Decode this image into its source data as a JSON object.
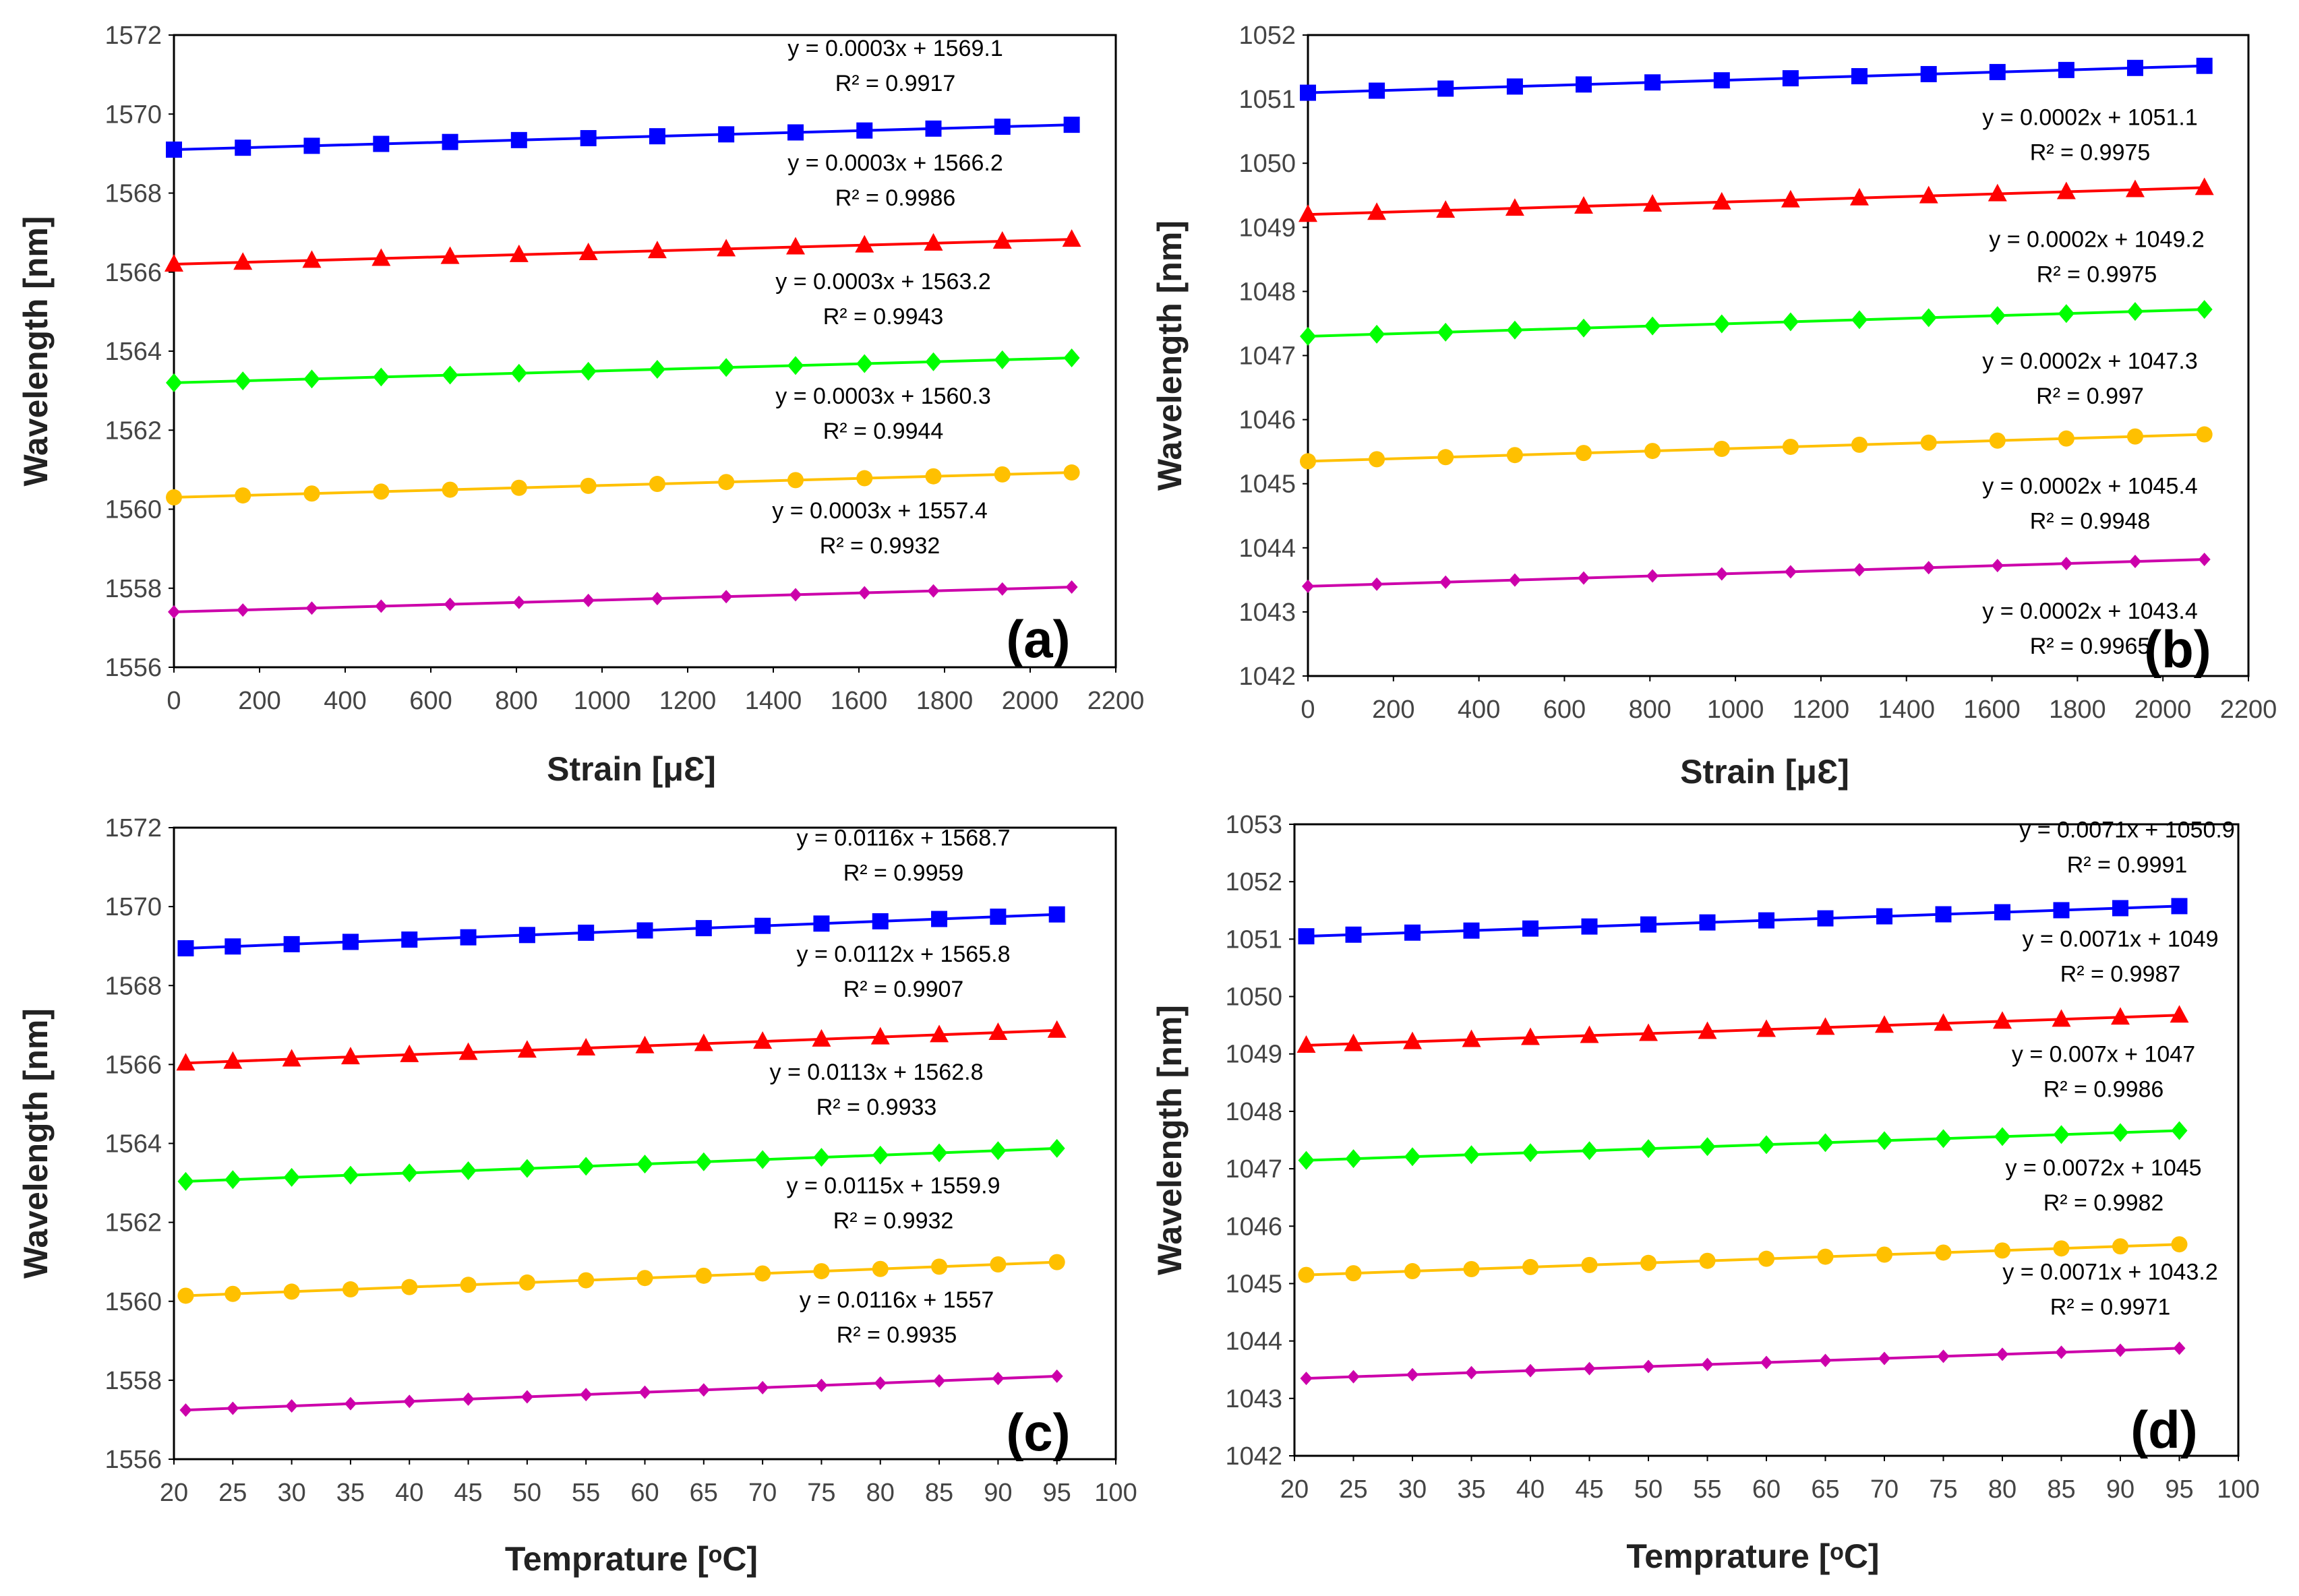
{
  "chart_data": [
    {
      "id": "a",
      "type": "line",
      "panel_label": "(a)",
      "xlabel": "Strain [μƐ]",
      "ylabel": "Wavelength [nm]",
      "xlim": [
        0,
        2200
      ],
      "ylim": [
        1556,
        1572
      ],
      "xticks": [
        "0",
        "200",
        "400",
        "600",
        "800",
        "1000",
        "1200",
        "1400",
        "1600",
        "1800",
        "2000",
        "2200"
      ],
      "yticks": [
        "1556",
        "1558",
        "1560",
        "1562",
        "1564",
        "1566",
        "1568",
        "1570",
        "1572"
      ],
      "x": [
        0,
        161,
        322,
        484,
        645,
        806,
        968,
        1129,
        1290,
        1452,
        1613,
        1774,
        1935,
        2097
      ],
      "series": [
        {
          "name": "Blue",
          "color": "#0000FF",
          "marker": "square",
          "slope": 0.0003,
          "intercept": 1569.1,
          "equation": "y = 0.0003x + 1569.1",
          "r2": "R² = 0.9917"
        },
        {
          "name": "Red",
          "color": "#FF0000",
          "marker": "triangle",
          "slope": 0.0003,
          "intercept": 1566.2,
          "equation": "y = 0.0003x + 1566.2",
          "r2": "R² = 0.9986"
        },
        {
          "name": "Green",
          "color": "#00FF00",
          "marker": "diamond",
          "slope": 0.0003,
          "intercept": 1563.2,
          "equation": "y = 0.0003x + 1563.2",
          "r2": "R² = 0.9943"
        },
        {
          "name": "Orange",
          "color": "#FFC000",
          "marker": "circle",
          "slope": 0.0003,
          "intercept": 1560.3,
          "equation": "y = 0.0003x + 1560.3",
          "r2": "R² = 0.9944"
        },
        {
          "name": "Magenta",
          "color": "#CC00AA",
          "marker": "smalldiamond",
          "slope": 0.0003,
          "intercept": 1557.4,
          "equation": "y = 0.0003x + 1557.4",
          "r2": "R² = 0.9932"
        }
      ]
    },
    {
      "id": "b",
      "type": "line",
      "panel_label": "(b)",
      "xlabel": "Strain [μƐ]",
      "ylabel": "Wavelength [nm]",
      "xlim": [
        0,
        2200
      ],
      "ylim": [
        1042,
        1052
      ],
      "xticks": [
        "0",
        "200",
        "400",
        "600",
        "800",
        "1000",
        "1200",
        "1400",
        "1600",
        "1800",
        "2000",
        "2200"
      ],
      "yticks": [
        "1042",
        "1043",
        "1044",
        "1045",
        "1046",
        "1047",
        "1048",
        "1049",
        "1050",
        "1051",
        "1052"
      ],
      "x": [
        0,
        161,
        322,
        484,
        645,
        806,
        968,
        1129,
        1290,
        1452,
        1613,
        1774,
        1935,
        2097
      ],
      "series": [
        {
          "name": "Blue",
          "color": "#0000FF",
          "marker": "square",
          "slope": 0.0002,
          "intercept": 1051.1,
          "equation": "y = 0.0002x + 1051.1",
          "r2": "R² = 0.9975"
        },
        {
          "name": "Red",
          "color": "#FF0000",
          "marker": "triangle",
          "slope": 0.0002,
          "intercept": 1049.2,
          "equation": "y = 0.0002x + 1049.2",
          "r2": "R² = 0.9975"
        },
        {
          "name": "Green",
          "color": "#00FF00",
          "marker": "diamond",
          "slope": 0.0002,
          "intercept": 1047.3,
          "equation": "y = 0.0002x + 1047.3",
          "r2": "R² = 0.997"
        },
        {
          "name": "Orange",
          "color": "#FFC000",
          "marker": "circle",
          "slope": 0.0002,
          "intercept": 1045.35,
          "equation": "y = 0.0002x + 1045.4",
          "r2": "R² = 0.9948"
        },
        {
          "name": "Magenta",
          "color": "#CC00AA",
          "marker": "smalldiamond",
          "slope": 0.0002,
          "intercept": 1043.4,
          "equation": "y = 0.0002x + 1043.4",
          "r2": "R² = 0.9965"
        }
      ]
    },
    {
      "id": "c",
      "type": "line",
      "panel_label": "(c)",
      "xlabel": "Temprature [ᵒC]",
      "ylabel": "Wavelength [nm]",
      "xlim": [
        20,
        100
      ],
      "ylim": [
        1556,
        1572
      ],
      "xticks": [
        "20",
        "25",
        "30",
        "35",
        "40",
        "45",
        "50",
        "55",
        "60",
        "65",
        "70",
        "75",
        "80",
        "85",
        "90",
        "95",
        "100"
      ],
      "yticks": [
        "1556",
        "1558",
        "1560",
        "1562",
        "1564",
        "1566",
        "1568",
        "1570",
        "1572"
      ],
      "x": [
        21,
        25,
        30,
        35,
        40,
        45,
        50,
        55,
        60,
        65,
        70,
        75,
        80,
        85,
        90,
        95
      ],
      "series": [
        {
          "name": "Blue",
          "color": "#0000FF",
          "marker": "square",
          "slope": 0.0116,
          "intercept": 1568.7,
          "equation": "y = 0.0116x + 1568.7",
          "r2": "R² = 0.9959"
        },
        {
          "name": "Red",
          "color": "#FF0000",
          "marker": "triangle",
          "slope": 0.0112,
          "intercept": 1565.8,
          "equation": "y = 0.0112x + 1565.8",
          "r2": "R² = 0.9907"
        },
        {
          "name": "Green",
          "color": "#00FF00",
          "marker": "diamond",
          "slope": 0.0113,
          "intercept": 1562.8,
          "equation": "y = 0.0113x + 1562.8",
          "r2": "R² = 0.9933"
        },
        {
          "name": "Orange",
          "color": "#FFC000",
          "marker": "circle",
          "slope": 0.0115,
          "intercept": 1559.9,
          "equation": "y = 0.0115x + 1559.9",
          "r2": "R² = 0.9932"
        },
        {
          "name": "Magenta",
          "color": "#CC00AA",
          "marker": "smalldiamond",
          "slope": 0.0116,
          "intercept": 1557,
          "equation": "y = 0.0116x + 1557",
          "r2": "R² = 0.9935"
        }
      ]
    },
    {
      "id": "d",
      "type": "line",
      "panel_label": "(d)",
      "xlabel": "Temprature [ᵒC]",
      "ylabel": "Wavelength [nm]",
      "xlim": [
        20,
        100
      ],
      "ylim": [
        1042,
        1053
      ],
      "xticks": [
        "20",
        "25",
        "30",
        "35",
        "40",
        "45",
        "50",
        "55",
        "60",
        "65",
        "70",
        "75",
        "80",
        "85",
        "90",
        "95",
        "100"
      ],
      "yticks": [
        "1042",
        "1043",
        "1044",
        "1045",
        "1046",
        "1047",
        "1048",
        "1049",
        "1050",
        "1051",
        "1052",
        "1053"
      ],
      "x": [
        21,
        25,
        30,
        35,
        40,
        45,
        50,
        55,
        60,
        65,
        70,
        75,
        80,
        85,
        90,
        95
      ],
      "series": [
        {
          "name": "Blue",
          "color": "#0000FF",
          "marker": "square",
          "slope": 0.0071,
          "intercept": 1050.9,
          "equation": "y = 0.0071x + 1050.9",
          "r2": "R² = 0.9991"
        },
        {
          "name": "Red",
          "color": "#FF0000",
          "marker": "triangle",
          "slope": 0.0071,
          "intercept": 1049,
          "equation": "y = 0.0071x + 1049",
          "r2": "R² = 0.9987"
        },
        {
          "name": "Green",
          "color": "#00FF00",
          "marker": "diamond",
          "slope": 0.007,
          "intercept": 1047,
          "equation": "y = 0.007x + 1047",
          "r2": "R² = 0.9986"
        },
        {
          "name": "Orange",
          "color": "#FFC000",
          "marker": "circle",
          "slope": 0.0072,
          "intercept": 1045,
          "equation": "y = 0.0072x + 1045",
          "r2": "R² = 0.9982"
        },
        {
          "name": "Magenta",
          "color": "#CC00AA",
          "marker": "smalldiamond",
          "slope": 0.0071,
          "intercept": 1043.2,
          "equation": "y = 0.0071x + 1043.2",
          "r2": "R² = 0.9971"
        }
      ]
    }
  ]
}
